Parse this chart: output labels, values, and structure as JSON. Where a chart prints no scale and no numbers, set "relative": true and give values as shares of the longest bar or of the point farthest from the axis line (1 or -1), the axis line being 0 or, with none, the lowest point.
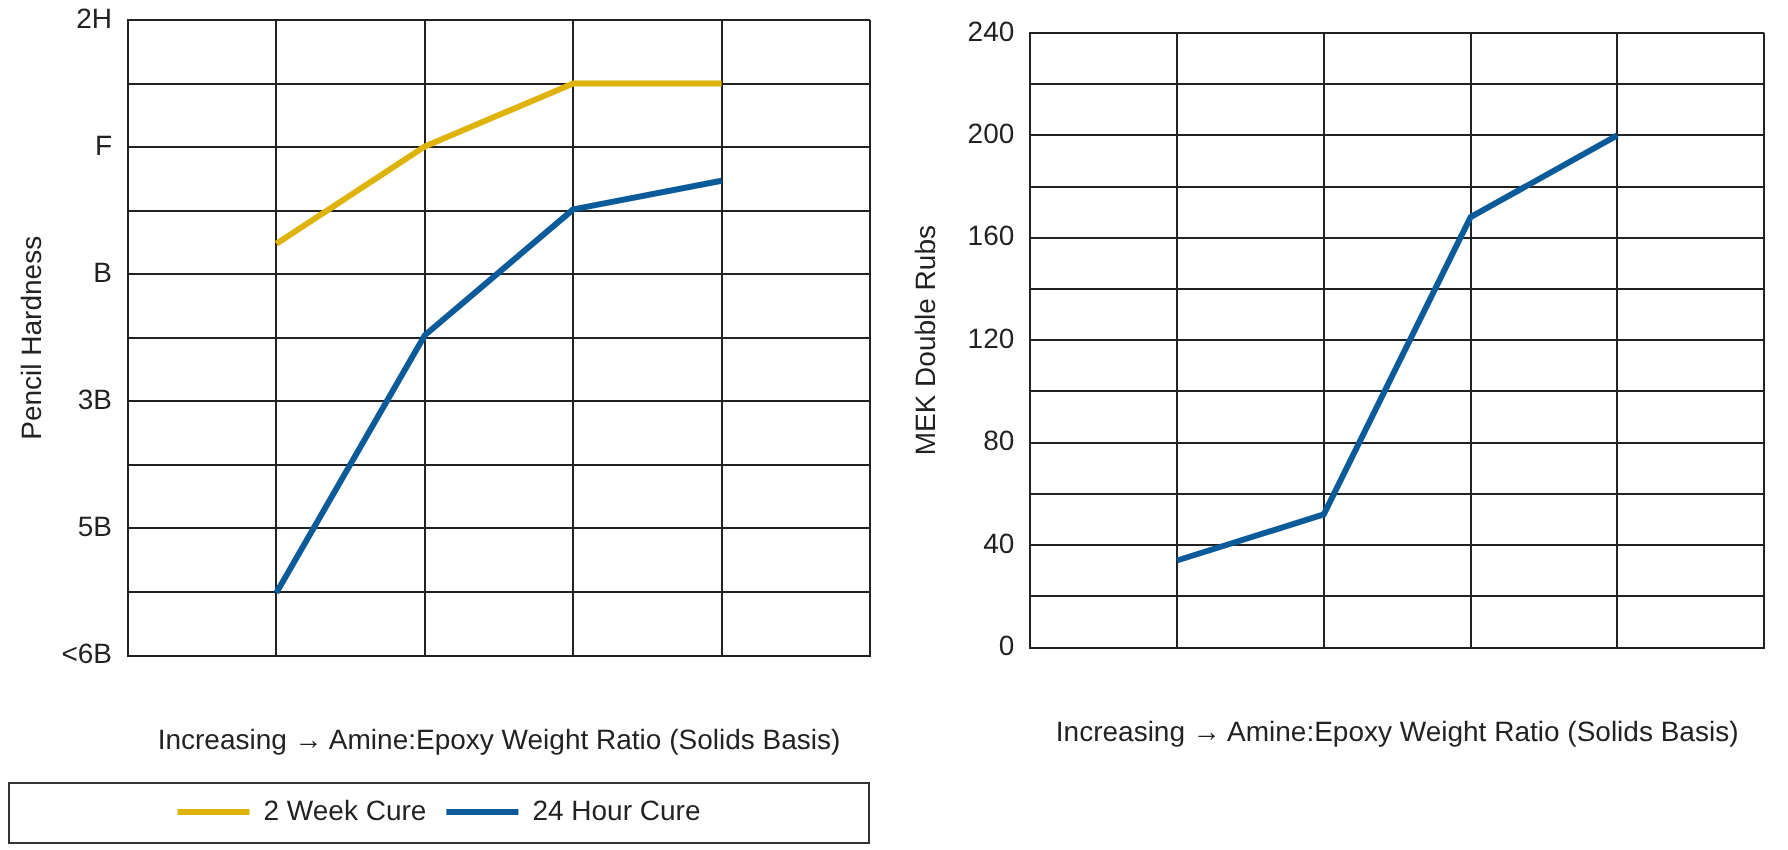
{
  "chart_data": [
    {
      "type": "line",
      "ylabel": "Pencil Hardness",
      "xlabel": "Increasing → Amine:Epoxy Weight Ratio (Solids Basis)",
      "categories": [
        null,
        null,
        null,
        null,
        null,
        null
      ],
      "series": [
        {
          "name": "2 Week Cure",
          "color": "#dfb40a",
          "values": [
            null,
            0.72,
            0.89,
            1,
            1,
            null
          ]
        },
        {
          "name": "24 Hour Cure",
          "color": "#0b5a9a",
          "values": [
            null,
            0.11,
            0.56,
            0.78,
            0.83,
            null
          ]
        }
      ],
      "relative": true,
      "annotations": [
        "2H",
        "F",
        "B",
        "3B",
        "5B",
        "<6B"
      ],
      "grid": true,
      "legend": "bottom",
      "marker": "none",
      "line_style": "solid"
    },
    {
      "type": "line",
      "ylabel": "MEK Double Rubs",
      "xlabel": "Increasing → Amine:Epoxy Weight Ratio (Solids Basis)",
      "categories": [
        null,
        null,
        null,
        null,
        null,
        null
      ],
      "series": [
        {
          "color": "#0b5a9a",
          "values": [
            null,
            34,
            52,
            168,
            200,
            null
          ]
        }
      ],
      "ylim": [
        0,
        240
      ],
      "yticks": [
        0,
        {
          "value": 20,
          "label": null
        },
        40,
        {
          "value": 60,
          "label": null
        },
        80,
        {
          "value": 100,
          "label": null
        },
        120,
        {
          "value": 140,
          "label": null
        },
        160,
        {
          "value": 180,
          "label": null
        },
        200,
        {
          "value": 220,
          "label": null
        },
        240
      ],
      "grid": true,
      "marker": "none",
      "line_style": "solid"
    }
  ]
}
